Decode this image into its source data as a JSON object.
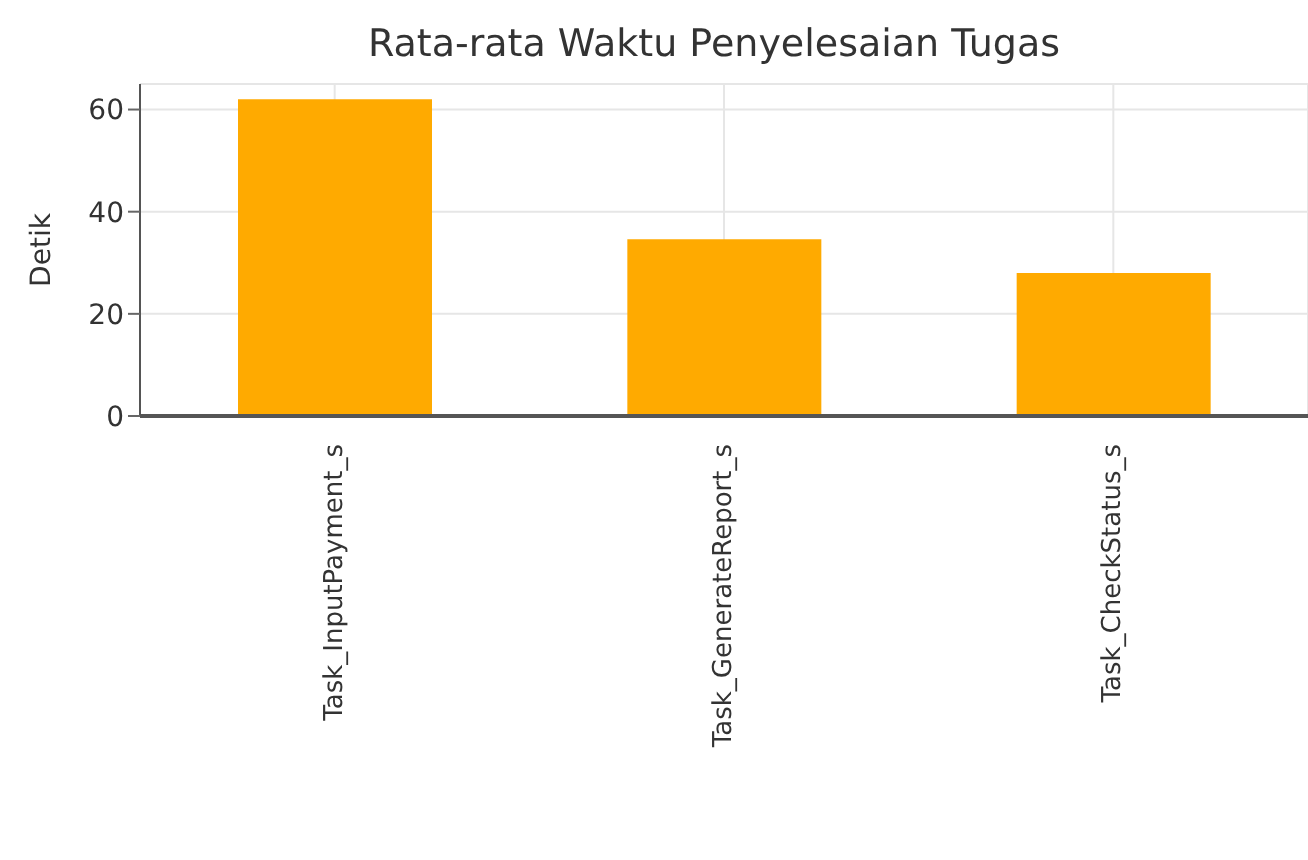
{
  "chart_data": {
    "type": "bar",
    "title": "Rata-rata Waktu Penyelesaian Tugas",
    "ylabel": "Detik",
    "categories": [
      "Task_InputPayment_s",
      "Task_GenerateReport_s",
      "Task_CheckStatus_s"
    ],
    "values": [
      62,
      34.6,
      28
    ],
    "color": "#ffaa00",
    "ylim": [
      0,
      65
    ],
    "yticks": [
      0,
      20,
      40,
      60
    ],
    "grid": true
  }
}
